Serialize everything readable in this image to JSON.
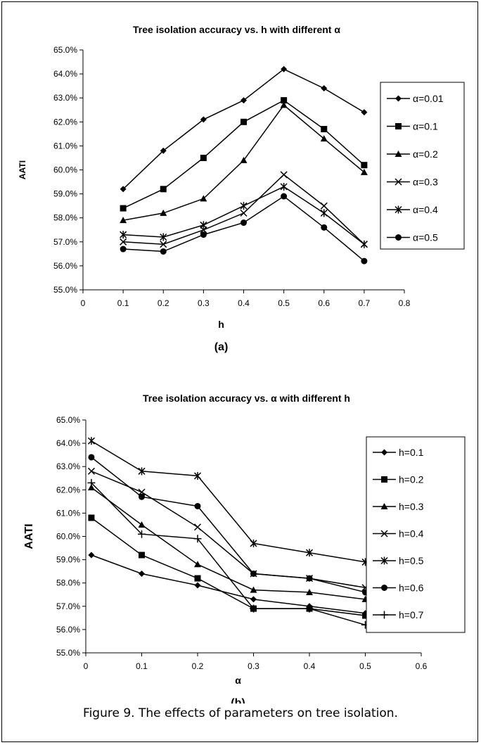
{
  "caption": "Figure 9. The effects of parameters on tree isolation.",
  "chart_data": [
    {
      "type": "line",
      "title": "Tree isolation accuracy vs. h with different α",
      "xlabel": "h",
      "ylabel": "AATI",
      "panel_label": "(a)",
      "xlim": [
        0,
        0.8
      ],
      "ylim": [
        55,
        65
      ],
      "x_ticks": [
        0,
        0.1,
        0.2,
        0.3,
        0.4,
        0.5,
        0.6,
        0.7,
        0.8
      ],
      "x_tick_labels": [
        "0",
        "0.1",
        "0.2",
        "0.3",
        "0.4",
        "0.5",
        "0.6",
        "0.7",
        "0.8"
      ],
      "y_ticks": [
        55,
        56,
        57,
        58,
        59,
        60,
        61,
        62,
        63,
        64,
        65
      ],
      "y_tick_labels": [
        "55.0%",
        "56.0%",
        "57.0%",
        "58.0%",
        "59.0%",
        "60.0%",
        "61.0%",
        "62.0%",
        "63.0%",
        "64.0%",
        "65.0%"
      ],
      "grid": false,
      "legend_position": "right",
      "x": [
        0.1,
        0.2,
        0.3,
        0.4,
        0.5,
        0.6,
        0.7
      ],
      "series": [
        {
          "name": "α=0.01",
          "marker": "diamond",
          "values": [
            59.2,
            60.8,
            62.1,
            62.9,
            64.2,
            63.4,
            62.4
          ]
        },
        {
          "name": "α=0.1",
          "marker": "square",
          "values": [
            58.4,
            59.2,
            60.5,
            62.0,
            62.9,
            61.7,
            60.2
          ]
        },
        {
          "name": "α=0.2",
          "marker": "triangle",
          "values": [
            57.9,
            58.2,
            58.8,
            60.4,
            62.7,
            61.3,
            59.9
          ]
        },
        {
          "name": "α=0.3",
          "marker": "x",
          "values": [
            57.0,
            56.9,
            57.5,
            58.2,
            59.8,
            58.5,
            56.9
          ]
        },
        {
          "name": "α=0.4",
          "marker": "star",
          "values": [
            57.3,
            57.2,
            57.7,
            58.5,
            59.3,
            58.2,
            56.9
          ]
        },
        {
          "name": "α=0.5",
          "marker": "circle",
          "values": [
            56.7,
            56.6,
            57.3,
            57.8,
            58.9,
            57.6,
            56.2
          ]
        }
      ]
    },
    {
      "type": "line",
      "title": "Tree isolation accuracy vs. α with different h",
      "xlabel": "α",
      "ylabel": "AATI",
      "panel_label": "(b)",
      "xlim": [
        0,
        0.6
      ],
      "ylim": [
        55,
        65
      ],
      "x_ticks": [
        0,
        0.1,
        0.2,
        0.3,
        0.4,
        0.5,
        0.6
      ],
      "x_tick_labels": [
        "0",
        "0.1",
        "0.2",
        "0.3",
        "0.4",
        "0.5",
        "0.6"
      ],
      "y_ticks": [
        55,
        56,
        57,
        58,
        59,
        60,
        61,
        62,
        63,
        64,
        65
      ],
      "y_tick_labels": [
        "55.0%",
        "56.0%",
        "57.0%",
        "58.0%",
        "59.0%",
        "60.0%",
        "61.0%",
        "62.0%",
        "63.0%",
        "64.0%",
        "65.0%"
      ],
      "grid": false,
      "legend_position": "right",
      "x": [
        0.01,
        0.1,
        0.2,
        0.3,
        0.4,
        0.5
      ],
      "series": [
        {
          "name": "h=0.1",
          "marker": "diamond",
          "values": [
            59.2,
            58.4,
            57.9,
            57.3,
            57.0,
            56.7
          ]
        },
        {
          "name": "h=0.2",
          "marker": "square",
          "values": [
            60.8,
            59.2,
            58.2,
            56.9,
            56.9,
            56.6
          ]
        },
        {
          "name": "h=0.3",
          "marker": "triangle",
          "values": [
            62.1,
            60.5,
            58.8,
            57.7,
            57.6,
            57.3
          ]
        },
        {
          "name": "h=0.4",
          "marker": "x",
          "values": [
            62.8,
            61.9,
            60.4,
            58.4,
            58.2,
            57.8
          ]
        },
        {
          "name": "h=0.5",
          "marker": "star",
          "values": [
            64.1,
            62.8,
            62.6,
            59.7,
            59.3,
            58.9
          ]
        },
        {
          "name": "h=0.6",
          "marker": "circle",
          "values": [
            63.4,
            61.7,
            61.3,
            58.4,
            58.2,
            57.6
          ]
        },
        {
          "name": "h=0.7",
          "marker": "plus",
          "values": [
            62.3,
            60.1,
            59.9,
            56.9,
            56.9,
            56.2
          ]
        }
      ]
    }
  ]
}
